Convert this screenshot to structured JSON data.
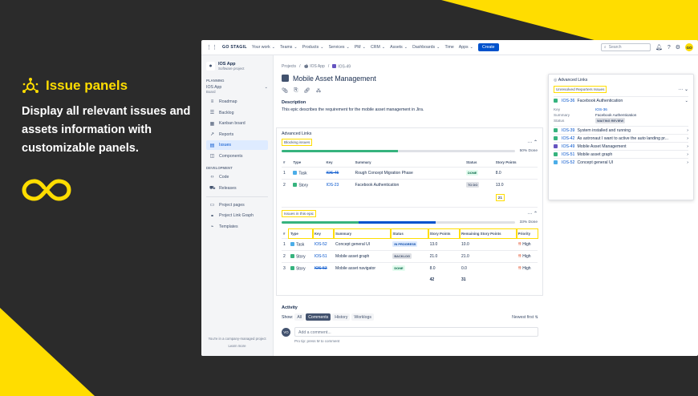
{
  "promo": {
    "title": "Issue panels",
    "description": "Display all relevant issues and assets information with customizable panels."
  },
  "colors": {
    "accent": "#ffdd00",
    "bg": "#2b2b2b",
    "jira_blue": "#0052cc",
    "green": "#36b37e",
    "blue_progress": "#0052cc"
  },
  "topbar": {
    "brand": "GO STAGIL",
    "menu": [
      "Your work",
      "Teams",
      "Products",
      "Services",
      "PM",
      "CRM",
      "Assets",
      "Dashboards",
      "Time",
      "Apps"
    ],
    "create": "Create",
    "search_placeholder": "Search",
    "avatar": "GO"
  },
  "sidebar": {
    "project_name": "IOS App",
    "project_type": "Software project",
    "planning": "PLANNING",
    "board_name": "IOS App",
    "board_sub": "Board",
    "planning_items": [
      {
        "icon": "roadmap-icon",
        "glyph": "≡",
        "label": "Roadmap"
      },
      {
        "icon": "backlog-icon",
        "glyph": "☰",
        "label": "Backlog"
      },
      {
        "icon": "board-icon",
        "glyph": "▦",
        "label": "Kanban board"
      },
      {
        "icon": "reports-icon",
        "glyph": "↗",
        "label": "Reports"
      },
      {
        "icon": "issues-icon",
        "glyph": "▤",
        "label": "Issues"
      },
      {
        "icon": "components-icon",
        "glyph": "◫",
        "label": "Components"
      }
    ],
    "development": "DEVELOPMENT",
    "dev_items": [
      {
        "icon": "code-icon",
        "glyph": "‹›",
        "label": "Code"
      },
      {
        "icon": "releases-icon",
        "glyph": "⛟",
        "label": "Releases"
      }
    ],
    "other_items": [
      {
        "icon": "pages-icon",
        "glyph": "▭",
        "label": "Project pages"
      },
      {
        "icon": "link-graph-icon",
        "glyph": "⚭",
        "label": "Project Link Graph"
      },
      {
        "icon": "templates-icon",
        "glyph": "⌁",
        "label": "Templates"
      }
    ],
    "footer_text": "You're in a company-managed project",
    "footer_link": "Learn more"
  },
  "issue": {
    "crumbs": [
      "Projects",
      "IOS App",
      "IOS-49"
    ],
    "title": "Mobile Asset Management",
    "description_heading": "Description",
    "description": "This epic describes the requirement for the mobile asset management in Jira."
  },
  "panel": {
    "title": "Advanced Links",
    "blocking": {
      "label": "Blocking issues",
      "progress_text": "50% Done",
      "done_fraction": 0.5,
      "headers": [
        "#",
        "Type",
        "Key",
        "Summary",
        "Status",
        "Story Points"
      ],
      "rows": [
        {
          "n": "1",
          "type": "Task",
          "key": "IOS-45",
          "summary": "Rough Concept Migration Phase",
          "status": "DONE",
          "points": "8.0"
        },
        {
          "n": "2",
          "type": "Story",
          "key": "IOS-23",
          "summary": "Facebook Authentication",
          "status": "TO DO",
          "points": "13.0"
        }
      ],
      "total": "21"
    },
    "epic": {
      "label": "Issues in this epic",
      "progress_text": "33% Done",
      "done_fraction": 0.33,
      "inprogress_fraction": 0.33,
      "headers": [
        "#",
        "Type",
        "Key",
        "Summary",
        "Status",
        "Story Points",
        "Remaining Story Points",
        "Priority"
      ],
      "rows": [
        {
          "n": "1",
          "type": "Task",
          "key": "IOS-52",
          "summary": "Concept general UI",
          "status": "IN PROGRESS",
          "points": "13.0",
          "remaining": "10.0",
          "priority": "High"
        },
        {
          "n": "2",
          "type": "Story",
          "key": "IOS-51",
          "summary": "Mobile asset graph",
          "status": "BACKLOG",
          "points": "21.0",
          "remaining": "21.0",
          "priority": "High"
        },
        {
          "n": "3",
          "type": "Story",
          "key": "IOS-53",
          "summary": "Mobile asset navigator",
          "status": "DONE",
          "points": "8.0",
          "remaining": "0.0",
          "priority": "High"
        }
      ],
      "total_points": "42",
      "total_remaining": "31"
    }
  },
  "rpanel": {
    "title": "Advanced Links",
    "section": "Unresolved Reporters Issues",
    "expanded": {
      "key": "IOS-36",
      "summary": "Facebook Authentication",
      "k1": "Key",
      "v1": "IOS-36",
      "k2": "Summary",
      "v2": "Facebook Authentication",
      "k3": "Status",
      "v3": "WAITING REVIEW"
    },
    "items": [
      {
        "key": "IOS-39",
        "summary": "System installed and running",
        "color": "#36b37e"
      },
      {
        "key": "IOS-42",
        "summary": "As astronaut I want to active the auto landing pr...",
        "color": "#36b37e"
      },
      {
        "key": "IOS-49",
        "summary": "Mobile Asset Management",
        "color": "#6554c0"
      },
      {
        "key": "IOS-51",
        "summary": "Mobile asset graph",
        "color": "#36b37e"
      },
      {
        "key": "IOS-52",
        "summary": "Concept general UI",
        "color": "#4bade8"
      }
    ]
  },
  "activity": {
    "heading": "Activity",
    "show": "Show:",
    "tabs": [
      "All",
      "Comments",
      "History",
      "Worklogs"
    ],
    "sort": "Newest first",
    "avatar": "VO",
    "placeholder": "Add a comment...",
    "tip": "Pro tip: press M to comment"
  }
}
